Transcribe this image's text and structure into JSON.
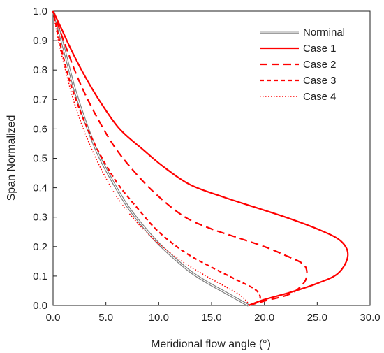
{
  "chart_data": {
    "type": "line",
    "title": "",
    "xlabel": "Meridional flow angle (°)",
    "ylabel": "Span Normalized",
    "xlim": [
      0,
      30
    ],
    "ylim": [
      0,
      1
    ],
    "x_ticks": [
      "0.0",
      "5.0",
      "10.0",
      "15.0",
      "20.0",
      "25.0",
      "30.0"
    ],
    "y_ticks": [
      "0.0",
      "0.1",
      "0.2",
      "0.3",
      "0.4",
      "0.5",
      "0.6",
      "0.7",
      "0.8",
      "0.9",
      "1.0"
    ],
    "grid": false,
    "legend_position": "top-right",
    "series": [
      {
        "name": "Norminal",
        "color": "#7f7f7f",
        "style": "double",
        "points": [
          [
            18.5,
            0.0
          ],
          [
            17.5,
            0.02
          ],
          [
            16.0,
            0.05
          ],
          [
            14.5,
            0.08
          ],
          [
            13.0,
            0.115
          ],
          [
            11.5,
            0.16
          ],
          [
            10.0,
            0.21
          ],
          [
            8.5,
            0.27
          ],
          [
            7.0,
            0.34
          ],
          [
            5.5,
            0.43
          ],
          [
            4.2,
            0.52
          ],
          [
            3.0,
            0.63
          ],
          [
            2.0,
            0.74
          ],
          [
            1.2,
            0.85
          ],
          [
            0.6,
            0.93
          ],
          [
            0.3,
            0.97
          ],
          [
            0.0,
            1.0
          ]
        ]
      },
      {
        "name": "Case 1",
        "color": "#ff0000",
        "style": "solid",
        "points": [
          [
            18.5,
            0.0
          ],
          [
            20.0,
            0.02
          ],
          [
            22.5,
            0.045
          ],
          [
            25.0,
            0.075
          ],
          [
            27.0,
            0.11
          ],
          [
            27.9,
            0.17
          ],
          [
            27.2,
            0.22
          ],
          [
            25.0,
            0.26
          ],
          [
            22.0,
            0.3
          ],
          [
            19.0,
            0.335
          ],
          [
            16.0,
            0.37
          ],
          [
            13.0,
            0.41
          ],
          [
            10.5,
            0.47
          ],
          [
            8.5,
            0.53
          ],
          [
            6.3,
            0.6
          ],
          [
            4.5,
            0.69
          ],
          [
            3.0,
            0.78
          ],
          [
            1.7,
            0.87
          ],
          [
            0.8,
            0.94
          ],
          [
            0.0,
            1.0
          ]
        ]
      },
      {
        "name": "Case 2",
        "color": "#ff0000",
        "style": "long-dash",
        "points": [
          [
            18.5,
            0.0
          ],
          [
            20.0,
            0.015
          ],
          [
            22.5,
            0.04
          ],
          [
            23.8,
            0.08
          ],
          [
            24.0,
            0.12
          ],
          [
            23.5,
            0.145
          ],
          [
            22.0,
            0.17
          ],
          [
            20.0,
            0.2
          ],
          [
            17.5,
            0.23
          ],
          [
            15.0,
            0.26
          ],
          [
            12.5,
            0.3
          ],
          [
            10.0,
            0.37
          ],
          [
            7.8,
            0.45
          ],
          [
            5.8,
            0.54
          ],
          [
            4.0,
            0.65
          ],
          [
            2.5,
            0.76
          ],
          [
            1.2,
            0.88
          ],
          [
            0.5,
            0.95
          ],
          [
            0.0,
            1.0
          ]
        ]
      },
      {
        "name": "Case 3",
        "color": "#ff0000",
        "style": "short-dash",
        "points": [
          [
            18.5,
            0.0
          ],
          [
            19.3,
            0.01
          ],
          [
            19.6,
            0.03
          ],
          [
            19.1,
            0.055
          ],
          [
            17.5,
            0.085
          ],
          [
            15.0,
            0.13
          ],
          [
            12.5,
            0.18
          ],
          [
            10.0,
            0.25
          ],
          [
            8.0,
            0.33
          ],
          [
            6.0,
            0.42
          ],
          [
            4.2,
            0.53
          ],
          [
            2.8,
            0.64
          ],
          [
            1.6,
            0.76
          ],
          [
            0.8,
            0.87
          ],
          [
            0.3,
            0.95
          ],
          [
            0.0,
            1.0
          ]
        ]
      },
      {
        "name": "Case 4",
        "color": "#ff0000",
        "style": "dotted",
        "points": [
          [
            18.5,
            0.0
          ],
          [
            18.3,
            0.015
          ],
          [
            17.5,
            0.04
          ],
          [
            16.0,
            0.07
          ],
          [
            14.0,
            0.11
          ],
          [
            12.0,
            0.155
          ],
          [
            10.0,
            0.21
          ],
          [
            8.0,
            0.28
          ],
          [
            6.2,
            0.36
          ],
          [
            4.6,
            0.46
          ],
          [
            3.2,
            0.57
          ],
          [
            2.0,
            0.69
          ],
          [
            1.1,
            0.81
          ],
          [
            0.5,
            0.9
          ],
          [
            0.2,
            0.96
          ],
          [
            0.0,
            1.0
          ]
        ]
      }
    ]
  }
}
